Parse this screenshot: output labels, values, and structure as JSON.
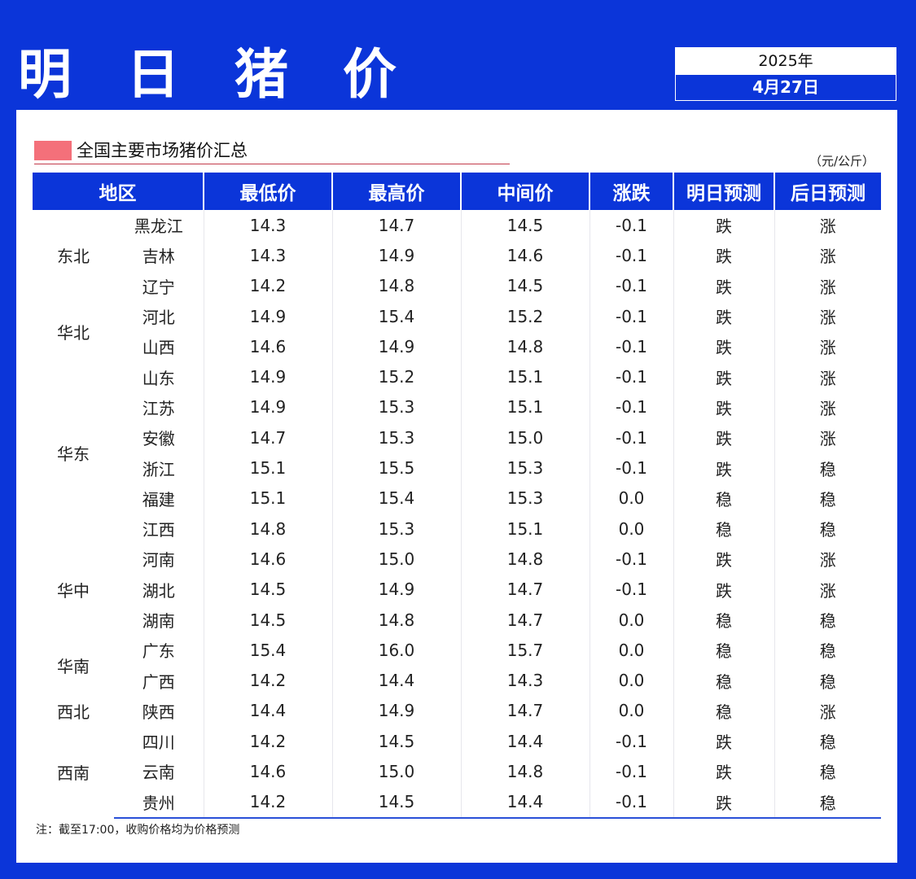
{
  "header": {
    "title": "明 日 猪 价",
    "year": "2025年",
    "date": "4月27日"
  },
  "section": {
    "title": "全国主要市场猪价汇总",
    "unit": "（元/公斤）"
  },
  "table": {
    "columns": [
      "地区",
      "最低价",
      "最高价",
      "中间价",
      "涨跌",
      "明日预测",
      "后日预测"
    ],
    "rows": [
      {
        "province": "黑龙江",
        "low": "14.3",
        "high": "14.7",
        "mid": "14.5",
        "change": "-0.1",
        "tomorrow": "跌",
        "after": "涨"
      },
      {
        "province": "吉林",
        "low": "14.3",
        "high": "14.9",
        "mid": "14.6",
        "change": "-0.1",
        "tomorrow": "跌",
        "after": "涨"
      },
      {
        "province": "辽宁",
        "low": "14.2",
        "high": "14.8",
        "mid": "14.5",
        "change": "-0.1",
        "tomorrow": "跌",
        "after": "涨"
      },
      {
        "province": "河北",
        "low": "14.9",
        "high": "15.4",
        "mid": "15.2",
        "change": "-0.1",
        "tomorrow": "跌",
        "after": "涨"
      },
      {
        "province": "山西",
        "low": "14.6",
        "high": "14.9",
        "mid": "14.8",
        "change": "-0.1",
        "tomorrow": "跌",
        "after": "涨"
      },
      {
        "province": "山东",
        "low": "14.9",
        "high": "15.2",
        "mid": "15.1",
        "change": "-0.1",
        "tomorrow": "跌",
        "after": "涨"
      },
      {
        "province": "江苏",
        "low": "14.9",
        "high": "15.3",
        "mid": "15.1",
        "change": "-0.1",
        "tomorrow": "跌",
        "after": "涨"
      },
      {
        "province": "安徽",
        "low": "14.7",
        "high": "15.3",
        "mid": "15.0",
        "change": "-0.1",
        "tomorrow": "跌",
        "after": "涨"
      },
      {
        "province": "浙江",
        "low": "15.1",
        "high": "15.5",
        "mid": "15.3",
        "change": "-0.1",
        "tomorrow": "跌",
        "after": "稳"
      },
      {
        "province": "福建",
        "low": "15.1",
        "high": "15.4",
        "mid": "15.3",
        "change": "0.0",
        "tomorrow": "稳",
        "after": "稳"
      },
      {
        "province": "江西",
        "low": "14.8",
        "high": "15.3",
        "mid": "15.1",
        "change": "0.0",
        "tomorrow": "稳",
        "after": "稳"
      },
      {
        "province": "河南",
        "low": "14.6",
        "high": "15.0",
        "mid": "14.8",
        "change": "-0.1",
        "tomorrow": "跌",
        "after": "涨"
      },
      {
        "province": "湖北",
        "low": "14.5",
        "high": "14.9",
        "mid": "14.7",
        "change": "-0.1",
        "tomorrow": "跌",
        "after": "涨"
      },
      {
        "province": "湖南",
        "low": "14.5",
        "high": "14.8",
        "mid": "14.7",
        "change": "0.0",
        "tomorrow": "稳",
        "after": "稳"
      },
      {
        "province": "广东",
        "low": "15.4",
        "high": "16.0",
        "mid": "15.7",
        "change": "0.0",
        "tomorrow": "稳",
        "after": "稳"
      },
      {
        "province": "广西",
        "low": "14.2",
        "high": "14.4",
        "mid": "14.3",
        "change": "0.0",
        "tomorrow": "稳",
        "after": "稳"
      },
      {
        "province": "陕西",
        "low": "14.4",
        "high": "14.9",
        "mid": "14.7",
        "change": "0.0",
        "tomorrow": "稳",
        "after": "涨"
      },
      {
        "province": "四川",
        "low": "14.2",
        "high": "14.5",
        "mid": "14.4",
        "change": "-0.1",
        "tomorrow": "跌",
        "after": "稳"
      },
      {
        "province": "云南",
        "low": "14.6",
        "high": "15.0",
        "mid": "14.8",
        "change": "-0.1",
        "tomorrow": "跌",
        "after": "稳"
      },
      {
        "province": "贵州",
        "low": "14.2",
        "high": "14.5",
        "mid": "14.4",
        "change": "-0.1",
        "tomorrow": "跌",
        "after": "稳"
      }
    ],
    "regions": [
      {
        "name": "东北",
        "span": 3
      },
      {
        "name": "华北",
        "span": 2
      },
      {
        "name": "华东",
        "span": 6
      },
      {
        "name": "华中",
        "span": 3
      },
      {
        "name": "华南",
        "span": 2
      },
      {
        "name": "西北",
        "span": 1
      },
      {
        "name": "西南",
        "span": 3
      }
    ]
  },
  "note": "注：截至17:00，收购价格均为价格预测",
  "colors": {
    "brand_blue": "#0b35d9",
    "down_green": "#14b54a",
    "up_red": "#e8355a",
    "marker_pink": "#f4707a"
  }
}
